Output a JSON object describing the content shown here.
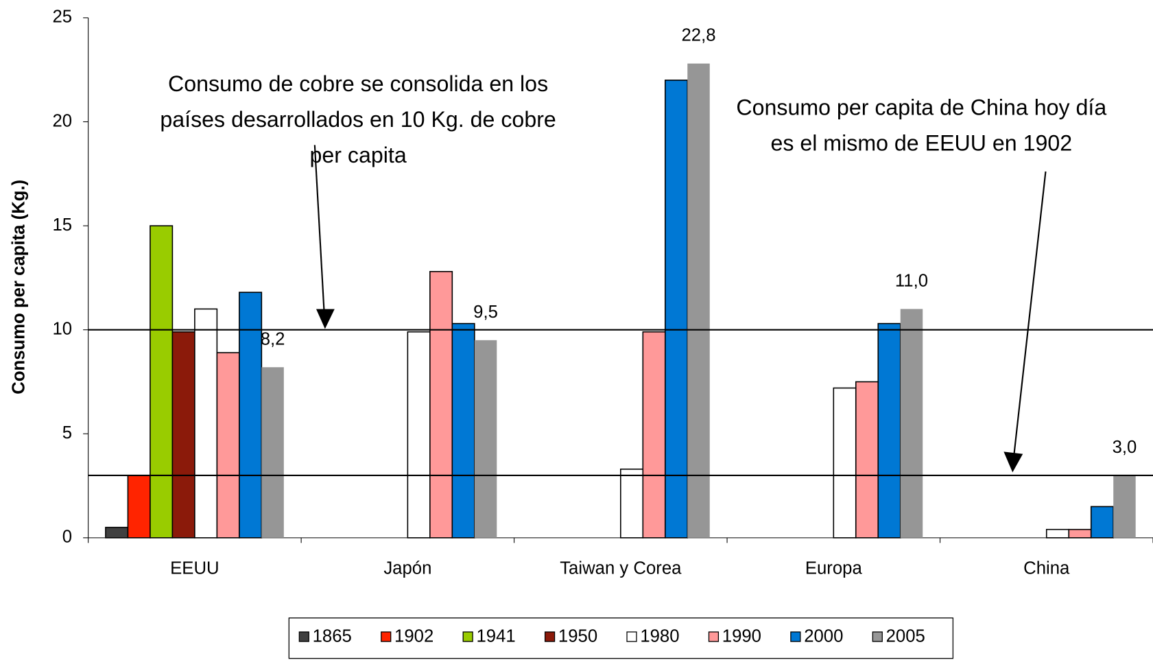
{
  "chart_data": {
    "type": "bar",
    "y_label": "Consumo per capita (Kg.)",
    "categories": [
      "EEUU",
      "Japón",
      "Taiwan y Corea",
      "Europa",
      "China"
    ],
    "series": [
      {
        "name": "1865",
        "color": "#404040",
        "values": [
          0.5,
          null,
          null,
          null,
          null
        ]
      },
      {
        "name": "1902",
        "color": "#ff2400",
        "values": [
          3.0,
          null,
          null,
          null,
          null
        ]
      },
      {
        "name": "1941",
        "color": "#99cc00",
        "values": [
          15.0,
          null,
          null,
          null,
          null
        ]
      },
      {
        "name": "1950",
        "color": "#8b1a0a",
        "values": [
          9.9,
          null,
          null,
          null,
          null
        ]
      },
      {
        "name": "1980",
        "color": "#ffffff",
        "values": [
          11.0,
          9.9,
          3.3,
          7.2,
          0.4
        ]
      },
      {
        "name": "1990",
        "color": "#ff9999",
        "values": [
          8.9,
          12.8,
          9.9,
          7.5,
          0.4
        ]
      },
      {
        "name": "2000",
        "color": "#0078d4",
        "values": [
          11.8,
          10.3,
          22.0,
          10.3,
          1.5
        ]
      },
      {
        "name": "2005",
        "color": "#969696",
        "values": [
          8.2,
          9.5,
          22.8,
          11.0,
          3.0
        ],
        "value_labels": [
          "8,2",
          "9,5",
          "22,8",
          "11,0",
          "3,0"
        ]
      }
    ],
    "ylim": [
      0,
      25
    ],
    "yticks": [
      0,
      5,
      10,
      15,
      20,
      25
    ],
    "grid": false,
    "legend": "bottom",
    "reference_lines": [
      10,
      3
    ],
    "annotations": [
      {
        "lines": [
          "Consumo de cobre se consolida en los",
          "países desarrollados en 10 Kg. de cobre",
          "per capita"
        ]
      },
      {
        "lines": [
          "Consumo per capita de China hoy día",
          "es el mismo de EEUU en 1902"
        ]
      }
    ]
  }
}
